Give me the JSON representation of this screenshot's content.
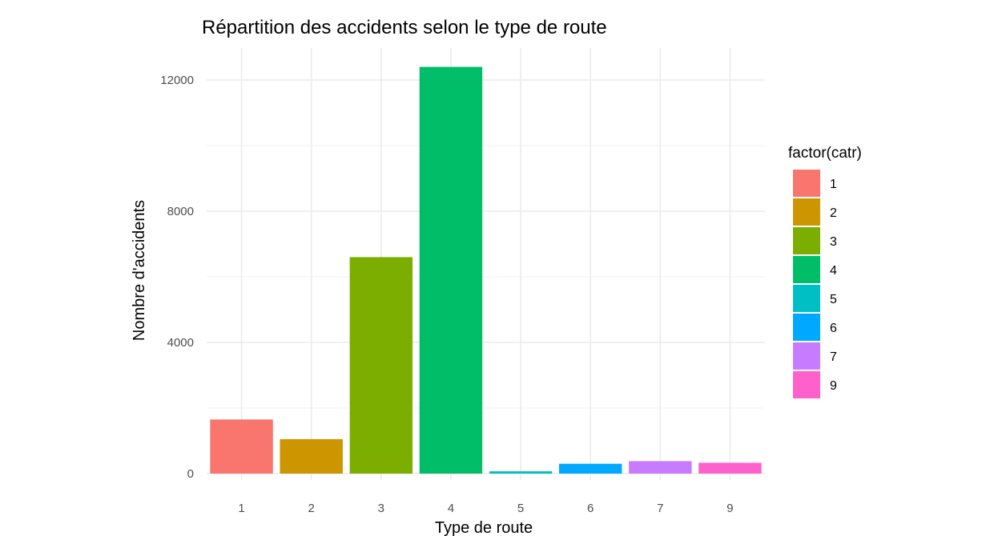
{
  "chart_data": {
    "type": "bar",
    "title": "Répartition des accidents selon le type de route",
    "xlabel": "Type de route",
    "ylabel": "Nombre d'accidents",
    "categories": [
      "1",
      "2",
      "3",
      "4",
      "5",
      "6",
      "7",
      "9"
    ],
    "values": [
      1650,
      1050,
      6600,
      12400,
      70,
      300,
      380,
      330
    ],
    "ylim": [
      0,
      12900
    ],
    "yticks": [
      0,
      4000,
      8000,
      12000
    ],
    "yticks_labels": [
      "0",
      "4000",
      "8000",
      "12000"
    ],
    "colors": [
      "#F8766D",
      "#CD9600",
      "#7CAE00",
      "#00BE67",
      "#00BFC4",
      "#00A9FF",
      "#C77CFF",
      "#FF61CC"
    ],
    "grid": true,
    "legend": {
      "title": "factor(catr)",
      "position": "right",
      "entries": [
        "1",
        "2",
        "3",
        "4",
        "5",
        "6",
        "7",
        "9"
      ]
    }
  }
}
